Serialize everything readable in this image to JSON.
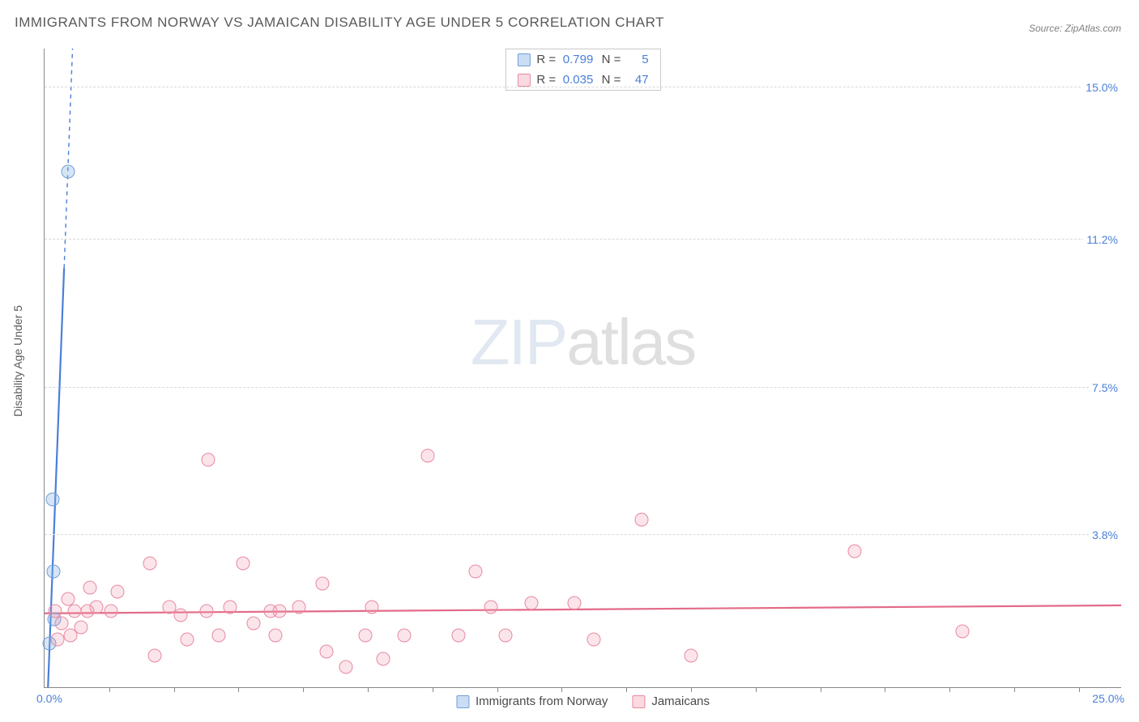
{
  "chart": {
    "type": "scatter",
    "title": "IMMIGRANTS FROM NORWAY VS JAMAICAN DISABILITY AGE UNDER 5 CORRELATION CHART",
    "source_label": "Source: ZipAtlas.com",
    "watermark": {
      "zip": "ZIP",
      "atlas": "atlas"
    },
    "y_axis_title": "Disability Age Under 5",
    "xlim": [
      0,
      25
    ],
    "ylim": [
      0,
      16
    ],
    "x_label_min": "0.0%",
    "x_label_max": "25.0%",
    "y_right_labels": [
      {
        "value": 3.8,
        "text": "3.8%"
      },
      {
        "value": 7.5,
        "text": "7.5%"
      },
      {
        "value": 11.2,
        "text": "11.2%"
      },
      {
        "value": 15.0,
        "text": "15.0%"
      }
    ],
    "x_ticks": [
      1.5,
      3.0,
      4.5,
      6.0,
      7.5,
      9.0,
      10.5,
      12.0,
      13.5,
      15.0,
      16.5,
      18.0,
      19.5,
      21.0,
      22.5,
      24.0
    ],
    "gridline_color": "#d9d9d9",
    "axis_color": "#888888",
    "background_color": "#ffffff",
    "series": [
      {
        "name": "Immigrants from Norway",
        "color_fill": "rgba(138,180,230,0.35)",
        "color_stroke": "#6f9fd8",
        "css_class": "series-blue",
        "swatch_class": "swatch-blue",
        "marker_size": 17,
        "r_text": "R =",
        "r_value": "0.799",
        "n_text": "N =",
        "n_value": "5",
        "trend": {
          "x1": 0.08,
          "y1": 0.0,
          "x2": 0.65,
          "y2": 16.0,
          "dash_from_y": 10.5,
          "stroke": "#4a7fd8",
          "width": 2.2
        },
        "points": [
          {
            "x": 0.12,
            "y": 1.1
          },
          {
            "x": 0.22,
            "y": 1.7
          },
          {
            "x": 0.2,
            "y": 2.9
          },
          {
            "x": 0.18,
            "y": 4.7
          },
          {
            "x": 0.55,
            "y": 12.9
          }
        ]
      },
      {
        "name": "Jamaicans",
        "color_fill": "rgba(240,150,170,0.25)",
        "color_stroke": "#e889a0",
        "css_class": "series-pink",
        "swatch_class": "swatch-pink",
        "marker_size": 17,
        "r_text": "R =",
        "r_value": "0.035",
        "n_text": "N =",
        "n_value": "47",
        "trend": {
          "x1": 0.0,
          "y1": 1.85,
          "x2": 25.0,
          "y2": 2.05,
          "stroke": "#e36b88",
          "width": 2.2
        },
        "points": [
          {
            "x": 0.25,
            "y": 1.9
          },
          {
            "x": 0.3,
            "y": 1.2
          },
          {
            "x": 0.4,
            "y": 1.6
          },
          {
            "x": 0.55,
            "y": 2.2
          },
          {
            "x": 0.6,
            "y": 1.3
          },
          {
            "x": 0.7,
            "y": 1.9
          },
          {
            "x": 0.85,
            "y": 1.5
          },
          {
            "x": 1.0,
            "y": 1.9
          },
          {
            "x": 1.05,
            "y": 2.5
          },
          {
            "x": 1.2,
            "y": 2.0
          },
          {
            "x": 1.55,
            "y": 1.9
          },
          {
            "x": 1.7,
            "y": 2.4
          },
          {
            "x": 2.45,
            "y": 3.1
          },
          {
            "x": 2.55,
            "y": 0.8
          },
          {
            "x": 2.9,
            "y": 2.0
          },
          {
            "x": 3.15,
            "y": 1.8
          },
          {
            "x": 3.3,
            "y": 1.2
          },
          {
            "x": 3.75,
            "y": 1.9
          },
          {
            "x": 3.8,
            "y": 5.7
          },
          {
            "x": 4.05,
            "y": 1.3
          },
          {
            "x": 4.3,
            "y": 2.0
          },
          {
            "x": 4.6,
            "y": 3.1
          },
          {
            "x": 4.85,
            "y": 1.6
          },
          {
            "x": 5.25,
            "y": 1.9
          },
          {
            "x": 5.35,
            "y": 1.3
          },
          {
            "x": 5.45,
            "y": 1.9
          },
          {
            "x": 5.9,
            "y": 2.0
          },
          {
            "x": 6.45,
            "y": 2.6
          },
          {
            "x": 6.55,
            "y": 0.9
          },
          {
            "x": 7.0,
            "y": 0.5
          },
          {
            "x": 7.45,
            "y": 1.3
          },
          {
            "x": 7.6,
            "y": 2.0
          },
          {
            "x": 7.85,
            "y": 0.7
          },
          {
            "x": 8.35,
            "y": 1.3
          },
          {
            "x": 8.9,
            "y": 5.8
          },
          {
            "x": 9.6,
            "y": 1.3
          },
          {
            "x": 10.0,
            "y": 2.9
          },
          {
            "x": 10.35,
            "y": 2.0
          },
          {
            "x": 10.7,
            "y": 1.3
          },
          {
            "x": 11.3,
            "y": 2.1
          },
          {
            "x": 12.3,
            "y": 2.1
          },
          {
            "x": 12.75,
            "y": 1.2
          },
          {
            "x": 13.85,
            "y": 4.2
          },
          {
            "x": 15.0,
            "y": 0.8
          },
          {
            "x": 18.8,
            "y": 3.4
          },
          {
            "x": 21.3,
            "y": 1.4
          }
        ]
      }
    ],
    "bottom_legend": [
      {
        "swatch_class": "swatch-blue",
        "label": "Immigrants from Norway"
      },
      {
        "swatch_class": "swatch-pink",
        "label": "Jamaicans"
      }
    ]
  }
}
